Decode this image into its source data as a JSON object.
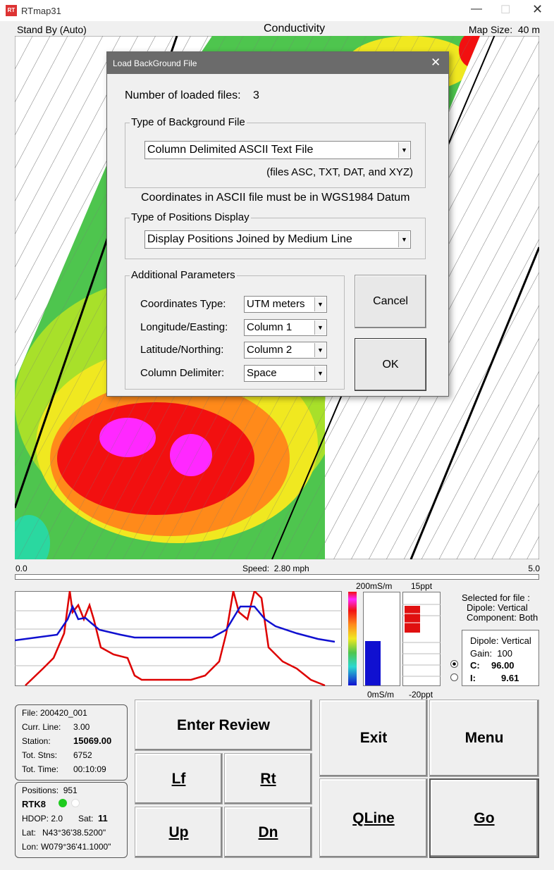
{
  "window": {
    "title": "RTmap31"
  },
  "status": {
    "mode": "Stand By (Auto)",
    "view": "Conductivity",
    "map_size": "Map Size:  40 m"
  },
  "speed_bar": {
    "min": "0.0",
    "speed": "Speed:  2.80 mph",
    "max": "5.0"
  },
  "scales": {
    "cond_max": "200mS/m",
    "cond_min": "0mS/m",
    "ip_max": "15ppt",
    "ip_min": "-20ppt"
  },
  "selected": {
    "heading": "Selected for file :",
    "dipole": "Dipole: Vertical",
    "component": "Component: Both"
  },
  "readout": {
    "dipole": "Dipole: Vertical",
    "gain": "Gain:  100",
    "c_label": "C:",
    "c_value": "96.00",
    "i_label": "I:",
    "i_value": "9.61"
  },
  "file_info": {
    "file": "File: 200420_001",
    "rows": [
      [
        "Curr. Line:",
        "3.00"
      ],
      [
        "Station:",
        "15069.00"
      ],
      [
        "Tot. Stns:",
        "6752"
      ],
      [
        "Tot. Time:",
        "00:10:09"
      ]
    ]
  },
  "gps": {
    "positions": "Positions:  951",
    "rtk": "RTK8",
    "hdop": "HDOP: 2.0",
    "sat_label": "Sat:",
    "sat_value": "11",
    "lat_label": "Lat:",
    "lat": "N43°36'38.5200\"",
    "lon_label": "Lon:",
    "lon": "W079°36'41.1000\""
  },
  "buttons": [
    "Enter Review",
    "Lf",
    "Rt",
    "Up",
    "Dn",
    "Exit",
    "Menu",
    "QLine",
    "Go"
  ],
  "dialog": {
    "title": "Load BackGround File",
    "loaded_label": "Number of loaded files:",
    "loaded_value": "3",
    "file_type_group": "Type of Background File",
    "file_type": "Column Delimited ASCII Text File",
    "file_type_note": "(files ASC, TXT, DAT, and XYZ)",
    "datum_note": "Coordinates in ASCII file must be in WGS1984 Datum",
    "display_group": "Type of Positions Display",
    "display": "Display Positions Joined by Medium Line",
    "params_group": "Additional Parameters",
    "params": [
      [
        "Coordinates Type:",
        "UTM meters"
      ],
      [
        "Longitude/Easting:",
        "Column 1"
      ],
      [
        "Latitude/Northing:",
        "Column 2"
      ],
      [
        "Column Delimiter:",
        "Space"
      ]
    ],
    "cancel": "Cancel",
    "ok": "OK"
  }
}
